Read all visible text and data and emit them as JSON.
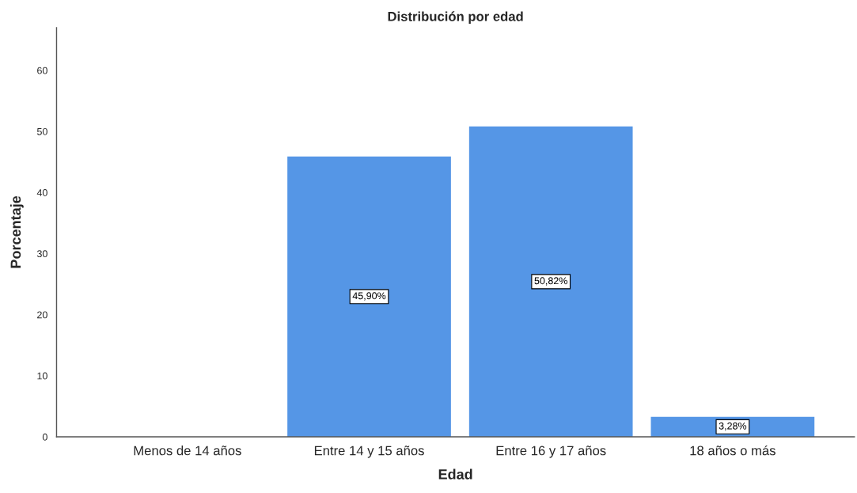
{
  "chart_data": {
    "type": "bar",
    "title": "Distribución por edad",
    "xlabel": "Edad",
    "ylabel": "Porcentaje",
    "categories": [
      "Menos de 14 años",
      "Entre 14 y 15 años",
      "Entre 16 y 17 años",
      "18 años o más"
    ],
    "values": [
      0,
      45.9,
      50.82,
      3.28
    ],
    "value_labels": [
      null,
      "45,90%",
      "50,82%",
      "3,28%"
    ],
    "color": "#5596e6",
    "ylim": [
      0,
      67
    ],
    "yticks": [
      0,
      10,
      20,
      30,
      40,
      50,
      60
    ]
  }
}
